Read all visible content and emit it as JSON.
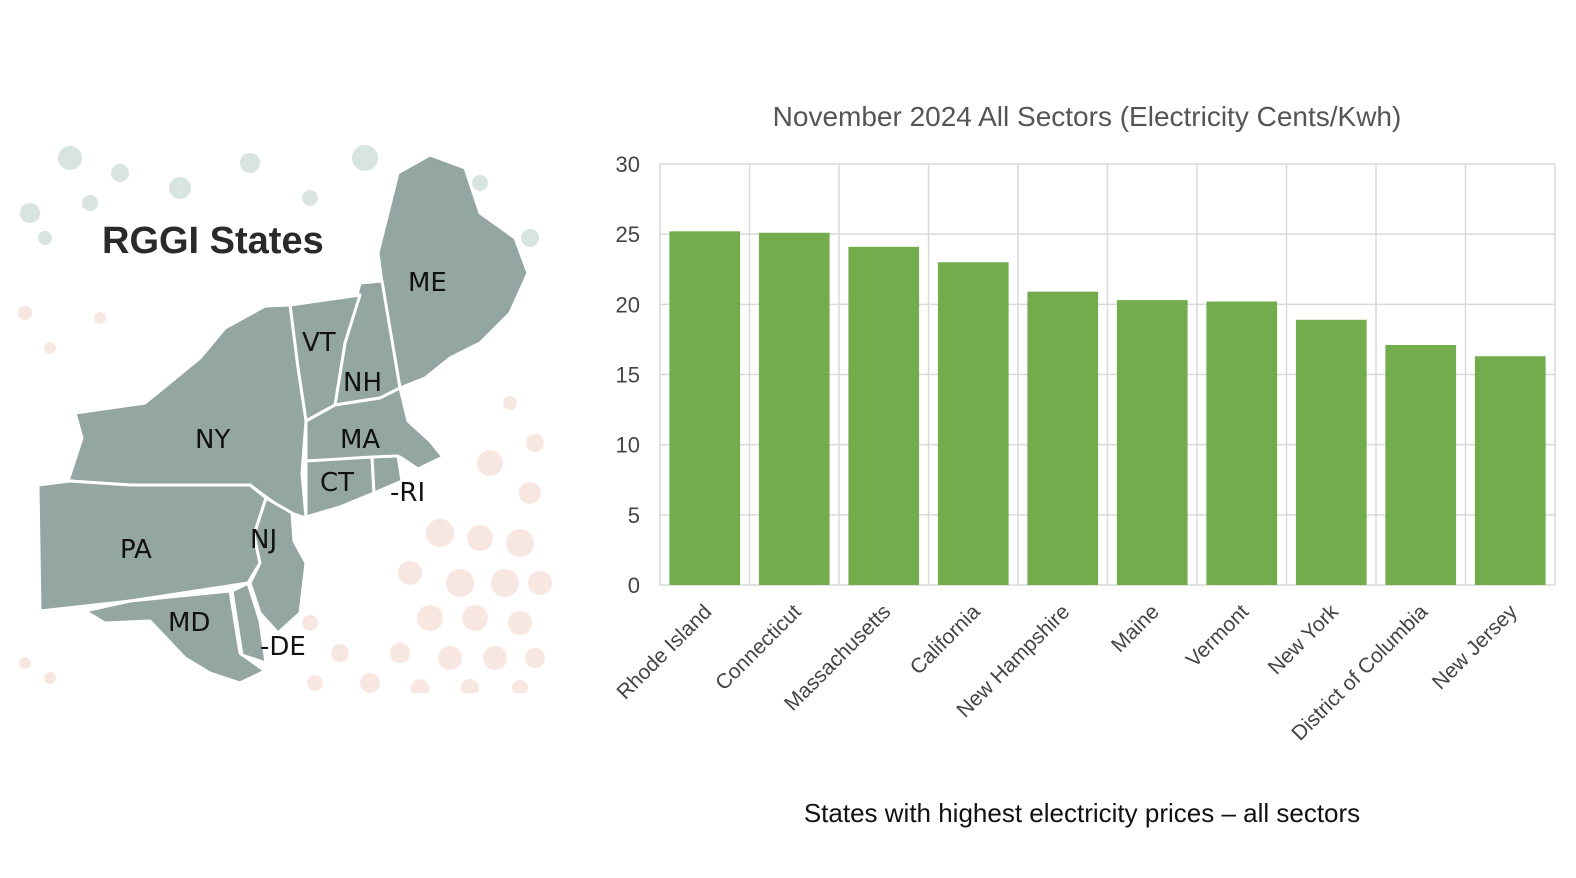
{
  "map": {
    "title": "RGGI States",
    "state_labels": {
      "me": "ME",
      "vt": "VT",
      "nh": "NH",
      "ny": "NY",
      "ma": "MA",
      "ct": "CT",
      "ri": "-RI",
      "pa": "PA",
      "nj": "NJ",
      "md": "MD",
      "de": "-DE"
    },
    "colors": {
      "land": "#93a6a2",
      "border": "#ffffff",
      "dot_green": "#d7e4df",
      "dot_pink": "#f8e6e0"
    }
  },
  "chart_data": {
    "type": "bar",
    "title": "November 2024 All Sectors (Electricity Cents/Kwh)",
    "xlabel": "States with highest electricity prices – all sectors",
    "ylabel": "",
    "categories": [
      "Rhode Island",
      "Connecticut",
      "Massachusetts",
      "California",
      "New Hampshire",
      "Maine",
      "Vermont",
      "New York",
      "District of Columbia",
      "New Jersey"
    ],
    "values": [
      25.2,
      25.1,
      24.1,
      23.0,
      20.9,
      20.3,
      20.2,
      18.9,
      17.1,
      16.3
    ],
    "ylim": [
      0,
      30
    ],
    "yticks": [
      "0",
      "5",
      "10",
      "15",
      "20",
      "25",
      "30"
    ],
    "grid": true,
    "bar_color": "#72ac4d"
  }
}
